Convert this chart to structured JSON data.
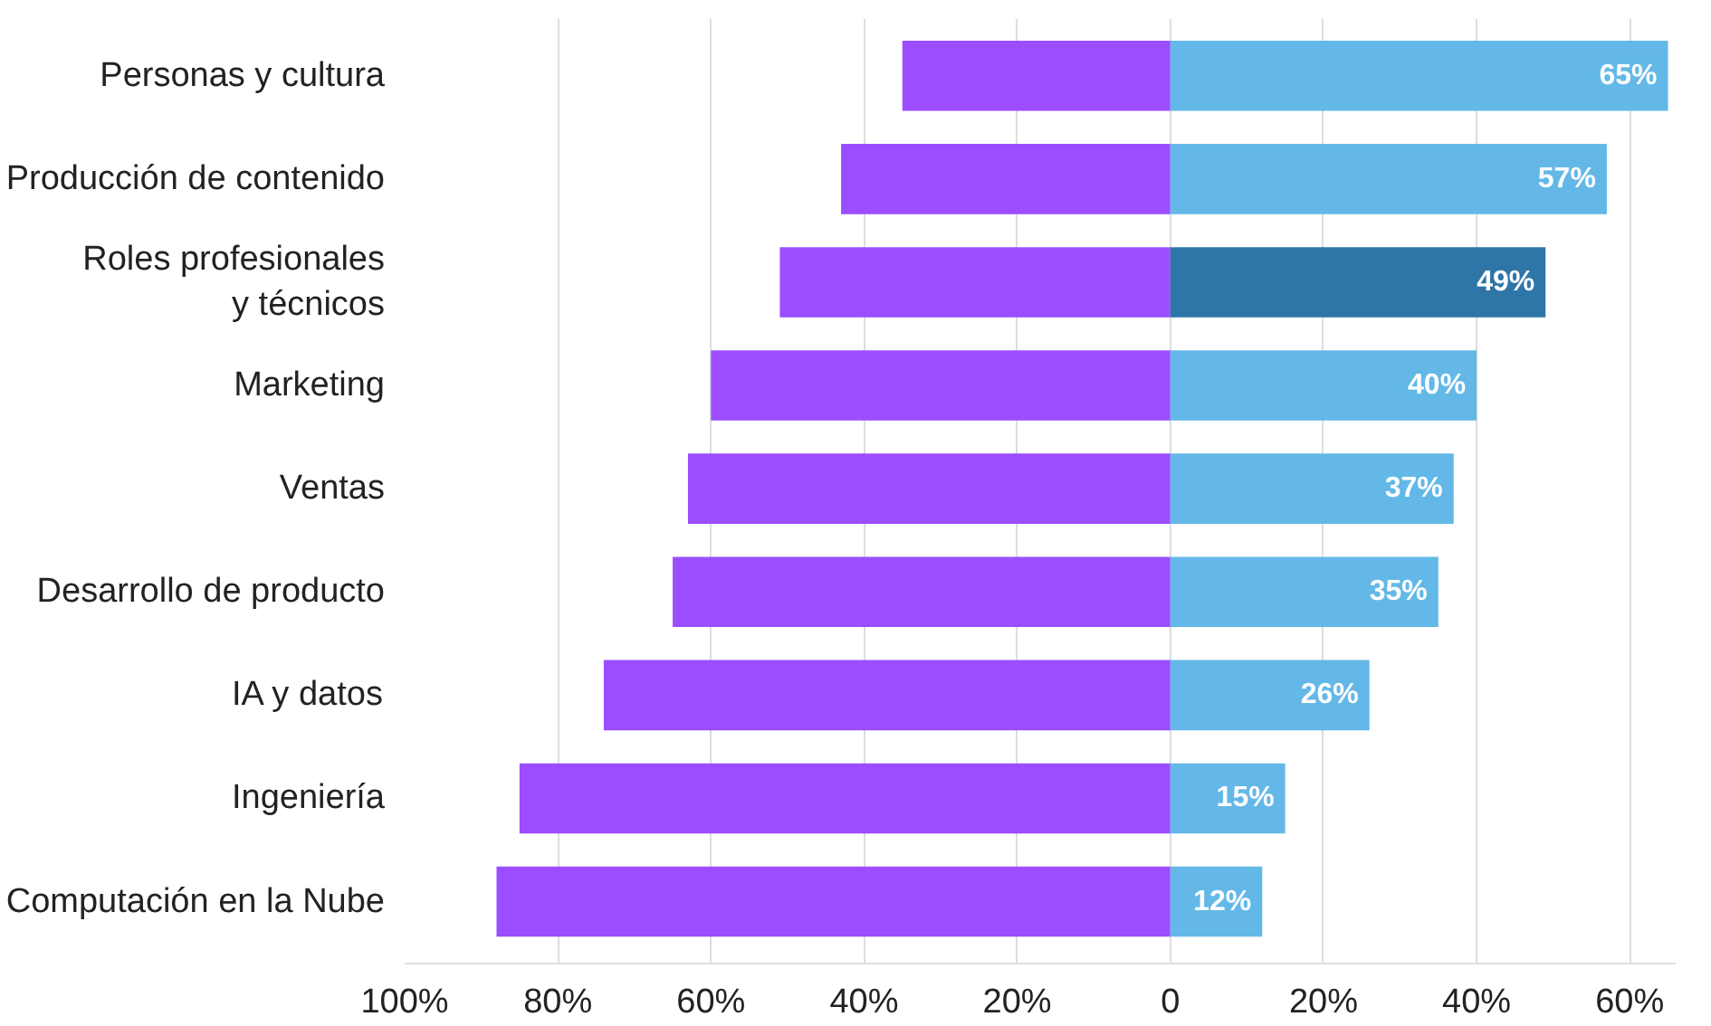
{
  "chart_data": {
    "type": "bar",
    "orientation": "horizontal",
    "stacked": true,
    "categories": [
      "Personas y cultura",
      "Producción de contenido",
      "Roles profesionales\ny técnicos",
      "Marketing",
      "Ventas",
      "Desarrollo de producto",
      "IA y datos",
      "Ingeniería",
      "Computación en la Nube"
    ],
    "series": [
      {
        "color": "#9b4dff",
        "values": [
          -35,
          -43,
          -51,
          -60,
          -63,
          -65,
          -74,
          -85,
          -88
        ]
      },
      {
        "colors": [
          "#63b8e8",
          "#63b8e8",
          "#2e75a8",
          "#63b8e8",
          "#63b8e8",
          "#63b8e8",
          "#63b8e8",
          "#63b8e8",
          "#63b8e8"
        ],
        "values": [
          65,
          57,
          49,
          40,
          37,
          35,
          26,
          15,
          12
        ],
        "value_labels": [
          "65%",
          "57%",
          "49%",
          "40%",
          "37%",
          "35%",
          "26%",
          "15%",
          "12%"
        ]
      }
    ],
    "xlim": [
      -100,
      66
    ],
    "xticks": [
      {
        "value": -100,
        "label": "100%"
      },
      {
        "value": -80,
        "label": "80%"
      },
      {
        "value": -60,
        "label": "60%"
      },
      {
        "value": -40,
        "label": "40%"
      },
      {
        "value": -20,
        "label": "20%"
      },
      0,
      {
        "value": 20,
        "label": "20%"
      },
      {
        "value": 40,
        "label": "40%"
      },
      {
        "value": 60,
        "label": "60%"
      }
    ],
    "grid": "x"
  }
}
